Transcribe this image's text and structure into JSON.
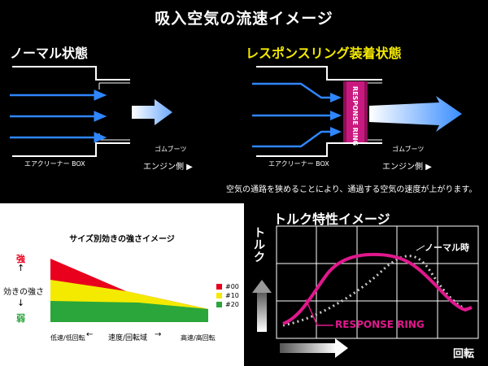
{
  "title": "吸入空気の流速イメージ",
  "normal": {
    "label": "ノーマル状態",
    "aircleaner": "エアクリーナー BOX",
    "hose": "ゴムブーツ",
    "engine": "エンジン側 ▶"
  },
  "ring": {
    "label": "レスポンスリング装着状態",
    "ring_text": "RESPONSE RING",
    "aircleaner": "エアクリーナー BOX",
    "hose": "ゴムブーツ",
    "engine": "エンジン側 ▶",
    "description": "空気の通路を狭めることにより、通過する空気の速度が上がります。"
  },
  "size_chart": {
    "title": "サイズ別効きの強さイメージ",
    "y_top": "強",
    "y_mid": "効きの強さ",
    "y_bottom": "弱",
    "x_left": "低速/低回転",
    "x_mid": "速度/回転域",
    "x_right": "高速/高回転",
    "colors": {
      "red": "#e8001c",
      "yellow": "#f4ea00",
      "green": "#2aa63a"
    }
  },
  "chart_data": [
    {
      "type": "area",
      "title": "サイズ別効きの強さイメージ",
      "series": [
        {
          "name": "#00",
          "color": "#e8001c"
        },
        {
          "name": "#10",
          "color": "#f4ea00"
        },
        {
          "name": "#20",
          "color": "#2aa63a"
        }
      ]
    },
    {
      "type": "line",
      "title": "トルク特性イメージ",
      "ylabel": "トルク",
      "xlabel": "回転",
      "series": [
        {
          "name": "ノーマル時",
          "style": "dotted",
          "color": "#c8c8c8"
        },
        {
          "name": "RESPONSE RING",
          "style": "solid",
          "color": "#e0188c"
        }
      ]
    }
  ],
  "torque": {
    "title": "トルク特性イメージ",
    "ylabel": "トルク",
    "xlabel": "回転",
    "normal_label": "ノーマル時",
    "ring_label": "RESPONSE RING"
  }
}
